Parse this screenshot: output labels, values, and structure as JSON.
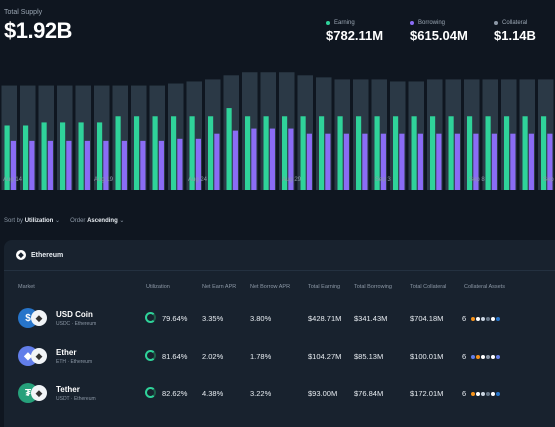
{
  "header": {
    "total_label": "Total Supply",
    "total_value": "$1.92B"
  },
  "stats": [
    {
      "label": "Earning",
      "value": "$782.11M",
      "color": "#2fd39a"
    },
    {
      "label": "Borrowing",
      "value": "$615.04M",
      "color": "#8a6cf5"
    },
    {
      "label": "Collateral",
      "value": "$1.14B",
      "color": "#8c98a6"
    }
  ],
  "chart_data": {
    "type": "bar",
    "x_tick_labels": [
      "Aug 14",
      "Aug 19",
      "Aug 24",
      "Aug 29",
      "Sep 3",
      "Sep 8",
      "Sep"
    ],
    "series": [
      {
        "name": "Collateral",
        "color": "#2b3946",
        "values": [
          1.02,
          1.02,
          1.02,
          1.02,
          1.02,
          1.02,
          1.02,
          1.02,
          1.02,
          1.04,
          1.06,
          1.08,
          1.12,
          1.15,
          1.15,
          1.15,
          1.12,
          1.1,
          1.08,
          1.08,
          1.08,
          1.06,
          1.06,
          1.08,
          1.08,
          1.08,
          1.08,
          1.08,
          1.08,
          1.08
        ]
      },
      {
        "name": "Earning",
        "color": "#2fd39a",
        "values": [
          0.63,
          0.63,
          0.66,
          0.66,
          0.66,
          0.66,
          0.72,
          0.72,
          0.72,
          0.72,
          0.72,
          0.72,
          0.8,
          0.72,
          0.72,
          0.72,
          0.72,
          0.72,
          0.72,
          0.72,
          0.72,
          0.72,
          0.72,
          0.72,
          0.72,
          0.72,
          0.72,
          0.72,
          0.72,
          0.72
        ]
      },
      {
        "name": "Borrowing",
        "color": "#8a6cf5",
        "values": [
          0.48,
          0.48,
          0.48,
          0.48,
          0.48,
          0.48,
          0.48,
          0.48,
          0.48,
          0.5,
          0.5,
          0.55,
          0.58,
          0.6,
          0.6,
          0.6,
          0.55,
          0.55,
          0.55,
          0.55,
          0.55,
          0.55,
          0.55,
          0.55,
          0.55,
          0.55,
          0.55,
          0.55,
          0.55,
          0.55
        ]
      }
    ],
    "ylim": [
      0,
      1.25
    ],
    "grid": false
  },
  "controls": {
    "sort_label": "Sort by",
    "sort_value": "Utilization",
    "order_label": "Order",
    "order_value": "Ascending"
  },
  "network": {
    "name": "Ethereum"
  },
  "table": {
    "headers": [
      "Market",
      "Utilization",
      "Net Earn APR",
      "Net Borrow APR",
      "Total Earning",
      "Total Borrowing",
      "Total Collateral",
      "Collateral Assets"
    ],
    "rows": [
      {
        "name": "USD Coin",
        "sub": "USDC · Ethereum",
        "icon_color": "#2775ca",
        "icon_glyph": "$",
        "utilization": "79.64%",
        "earn_apr": "3.35%",
        "borrow_apr": "3.80%",
        "total_earning": "$428.71M",
        "total_borrowing": "$341.43M",
        "total_collateral": "$704.18M",
        "collateral_count": "6",
        "collateral_colors": [
          "#f7931a",
          "#ffffff",
          "#c9d4e0",
          "#6a7a8a",
          "#ffffff",
          "#2775ca"
        ]
      },
      {
        "name": "Ether",
        "sub": "ETH · Ethereum",
        "icon_color": "#627eea",
        "icon_glyph": "◆",
        "utilization": "81.64%",
        "earn_apr": "2.02%",
        "borrow_apr": "1.78%",
        "total_earning": "$104.27M",
        "total_borrowing": "$85.13M",
        "total_collateral": "$100.01M",
        "collateral_count": "6",
        "collateral_colors": [
          "#627eea",
          "#f7931a",
          "#ffffff",
          "#8c98a6",
          "#ffffff",
          "#627eea"
        ]
      },
      {
        "name": "Tether",
        "sub": "USDT · Ethereum",
        "icon_color": "#26a17b",
        "icon_glyph": "₮",
        "utilization": "82.62%",
        "earn_apr": "4.38%",
        "borrow_apr": "3.22%",
        "total_earning": "$93.00M",
        "total_borrowing": "$76.84M",
        "total_collateral": "$172.01M",
        "collateral_count": "6",
        "collateral_colors": [
          "#f7931a",
          "#ffffff",
          "#c9d4e0",
          "#6a7a8a",
          "#ffffff",
          "#2775ca"
        ]
      }
    ]
  }
}
